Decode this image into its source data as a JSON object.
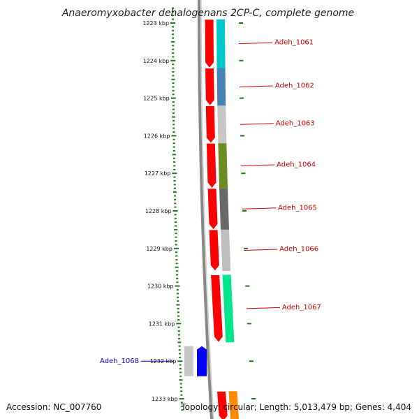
{
  "title": "Anaeromyxobacter dehalogenans 2CP-C, complete genome",
  "footer": {
    "accession": "Accession: NC_007760",
    "topology": "Topology: circular; Length: 5,013,479 bp; Genes: 4,404"
  },
  "scale": {
    "ticks": [
      {
        "label": "1223 kbp",
        "kbp": 1223
      },
      {
        "label": "1224 kbp",
        "kbp": 1224
      },
      {
        "label": "1225 kbp",
        "kbp": 1225
      },
      {
        "label": "1226 kbp",
        "kbp": 1226
      },
      {
        "label": "1227 kbp",
        "kbp": 1227
      },
      {
        "label": "1228 kbp",
        "kbp": 1228
      },
      {
        "label": "1229 kbp",
        "kbp": 1229
      },
      {
        "label": "1230 kbp",
        "kbp": 1230
      },
      {
        "label": "1231 kbp",
        "kbp": 1231
      },
      {
        "label": "1232 kbp",
        "kbp": 1232
      },
      {
        "label": "1233 kbp",
        "kbp": 1233
      }
    ]
  },
  "colors": {
    "forward_strand": "#ff0000",
    "reverse_strand": "#0000ff",
    "tick": "#1a7a1a",
    "backbone": "#888888",
    "forward_label": "#cc0000",
    "reverse_label": "#0000cc"
  },
  "genes": [
    {
      "label": "Adeh_1061",
      "strand": "+",
      "start_kbp": 1222.9,
      "end_kbp": 1224.2,
      "cog_color": "#00c8c8"
    },
    {
      "label": "Adeh_1062",
      "strand": "+",
      "start_kbp": 1224.2,
      "end_kbp": 1225.2,
      "cog_color": "#4682b4"
    },
    {
      "label": "Adeh_1063",
      "strand": "+",
      "start_kbp": 1225.2,
      "end_kbp": 1226.2,
      "cog_color": "#c8c8c8"
    },
    {
      "label": "Adeh_1064",
      "strand": "+",
      "start_kbp": 1226.2,
      "end_kbp": 1227.4,
      "cog_color": "#6b8e23"
    },
    {
      "label": "Adeh_1065",
      "strand": "+",
      "start_kbp": 1227.4,
      "end_kbp": 1228.5,
      "cog_color": "#696969"
    },
    {
      "label": "Adeh_1066",
      "strand": "+",
      "start_kbp": 1228.5,
      "end_kbp": 1229.6,
      "cog_color": "#bebebe"
    },
    {
      "label": "Adeh_1067",
      "strand": "+",
      "start_kbp": 1229.7,
      "end_kbp": 1231.5,
      "cog_color": "#00e68c"
    },
    {
      "label": "Adeh_1068",
      "strand": "-",
      "start_kbp": 1231.6,
      "end_kbp": 1232.4,
      "cog_color": "#c8c8c8"
    },
    {
      "label": "",
      "strand": "+",
      "start_kbp": 1232.8,
      "end_kbp": 1233.6,
      "cog_color": "#ff8c00"
    }
  ]
}
